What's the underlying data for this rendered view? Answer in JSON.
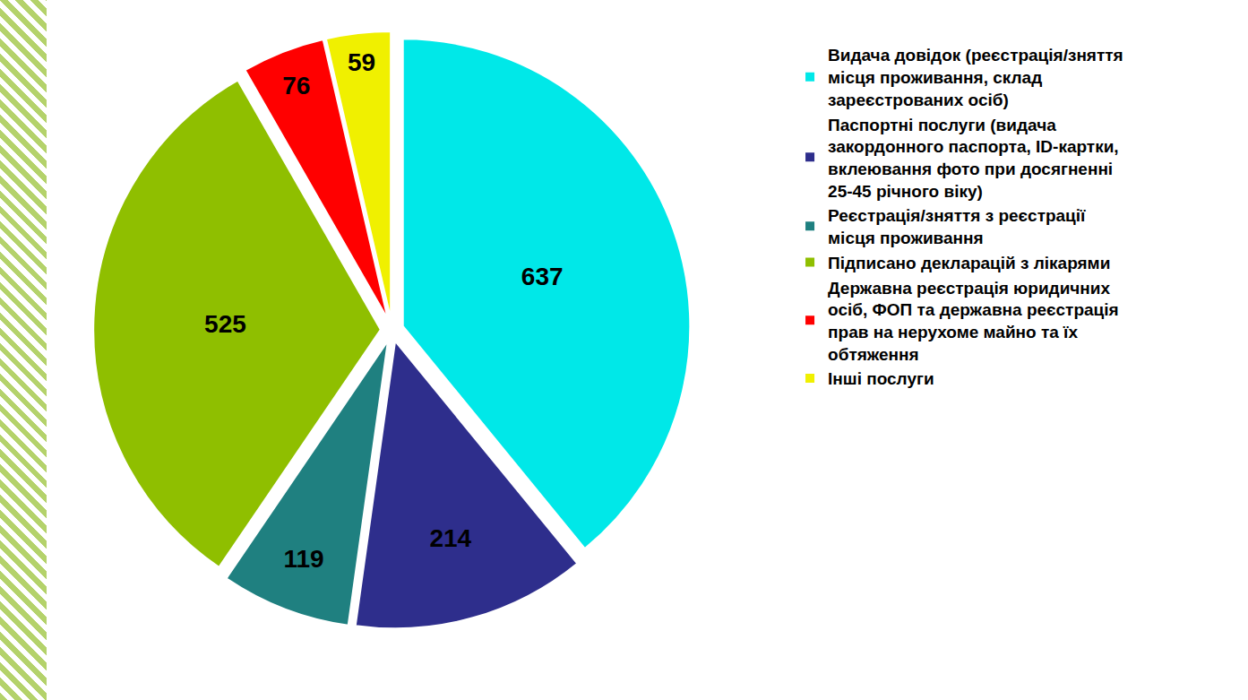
{
  "chart_data": {
    "type": "pie",
    "categories": [
      "Видача довідок (реєстрація/зняття місця проживання, склад зареєстрованих осіб)",
      "Паспортні послуги (видача закордонного паспорта, ID-картки, вклеювання фото при досягненні 25-45 річного віку)",
      "Реєстрація/зняття з реєстрації місця проживання",
      "Підписано декларацій з лікарями",
      "Державна реєстрація юридичних осіб, ФОП та державна реєстрація прав на нерухоме майно та їх обтяження",
      "Інші послуги"
    ],
    "values": [
      637,
      214,
      119,
      525,
      76,
      59
    ],
    "colors": [
      "#00e8e8",
      "#2e2e8c",
      "#1f8080",
      "#8fbf00",
      "#ff0000",
      "#f0f000"
    ],
    "data_labels": true,
    "legend": "right"
  }
}
